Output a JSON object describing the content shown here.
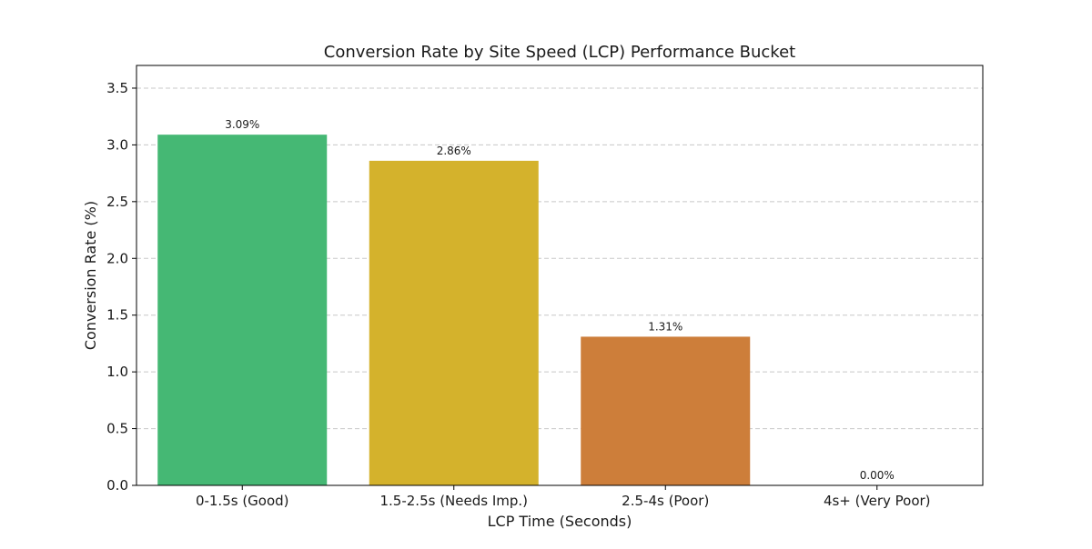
{
  "chart_data": {
    "type": "bar",
    "title": "Conversion Rate by Site Speed (LCP) Performance Bucket",
    "xlabel": "LCP Time (Seconds)",
    "ylabel": "Conversion Rate (%)",
    "categories": [
      "0-1.5s (Good)",
      "1.5-2.5s (Needs Imp.)",
      "2.5-4s (Poor)",
      "4s+ (Very Poor)"
    ],
    "values": [
      3.09,
      2.86,
      1.31,
      0.0
    ],
    "data_labels": [
      "3.09%",
      "2.86%",
      "1.31%",
      "0.00%"
    ],
    "colors": [
      "#45b874",
      "#d4b22c",
      "#cd7e3a",
      "#c0392b"
    ],
    "ylim": [
      0,
      3.7
    ],
    "yticks": [
      0.0,
      0.5,
      1.0,
      1.5,
      2.0,
      2.5,
      3.0,
      3.5
    ],
    "ytick_labels": [
      "0.0",
      "0.5",
      "1.0",
      "1.5",
      "2.0",
      "2.5",
      "3.0",
      "3.5"
    ],
    "grid": true,
    "legend": "none"
  }
}
